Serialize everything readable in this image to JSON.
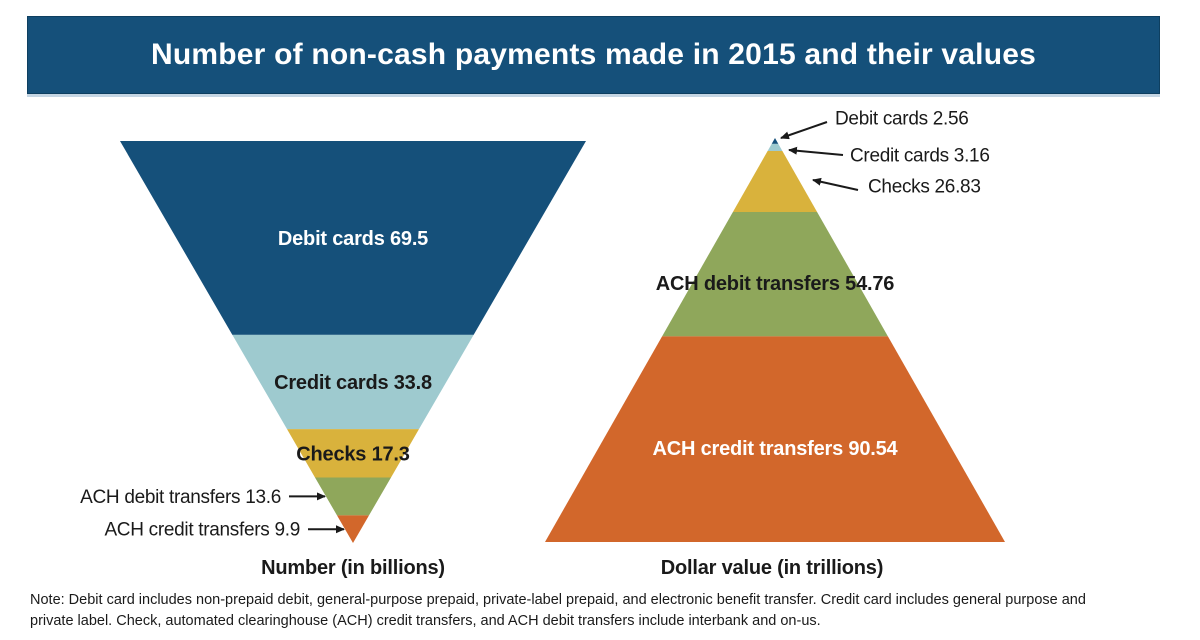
{
  "header": {
    "title": "Number of non-cash payments made in 2015 and their values"
  },
  "footnote": "Note: Debit card includes non-prepaid debit, general-purpose prepaid, private-label prepaid, and electronic benefit transfer. Credit card includes general purpose and private label. Check, automated clearinghouse (ACH) credit transfers, and ACH debit transfers include interbank and on-us.",
  "colors": {
    "header_bg": "#15507A",
    "dark_blue": "#15507A",
    "light_blue": "#9ECACF",
    "gold": "#D9B23C",
    "green": "#8FA75B",
    "orange": "#D2672B",
    "text_dark": "#1A1A1A",
    "text_light": "#FFFFFF"
  },
  "chart_data": [
    {
      "type": "pyramid",
      "orientation": "inverted",
      "axis_title": "Number (in billions)",
      "unit": "billions",
      "categories": [
        "Debit cards",
        "Credit cards",
        "Checks",
        "ACH debit transfers",
        "ACH credit transfers"
      ],
      "values": [
        69.5,
        33.8,
        17.3,
        13.6,
        9.9
      ],
      "colors": [
        "#15507A",
        "#9ECACF",
        "#D9B23C",
        "#8FA75B",
        "#D2672B"
      ],
      "label_colors": [
        "#FFFFFF",
        "#1A1A1A",
        "#1A1A1A",
        "#1A1A1A",
        "#1A1A1A"
      ],
      "label_placement": [
        "inside",
        "inside",
        "inside",
        "outside-left",
        "outside-left"
      ]
    },
    {
      "type": "pyramid",
      "orientation": "upright",
      "axis_title": "Dollar value (in trillions)",
      "unit": "trillions",
      "categories": [
        "Debit cards",
        "Credit cards",
        "Checks",
        "ACH debit transfers",
        "ACH credit transfers"
      ],
      "values": [
        2.56,
        3.16,
        26.83,
        54.76,
        90.54
      ],
      "colors": [
        "#15507A",
        "#9ECACF",
        "#D9B23C",
        "#8FA75B",
        "#D2672B"
      ],
      "label_colors": [
        "#1A1A1A",
        "#1A1A1A",
        "#1A1A1A",
        "#1A1A1A",
        "#FFFFFF"
      ],
      "label_placement": [
        "outside-right",
        "outside-right",
        "outside-right",
        "inside",
        "inside"
      ]
    }
  ]
}
